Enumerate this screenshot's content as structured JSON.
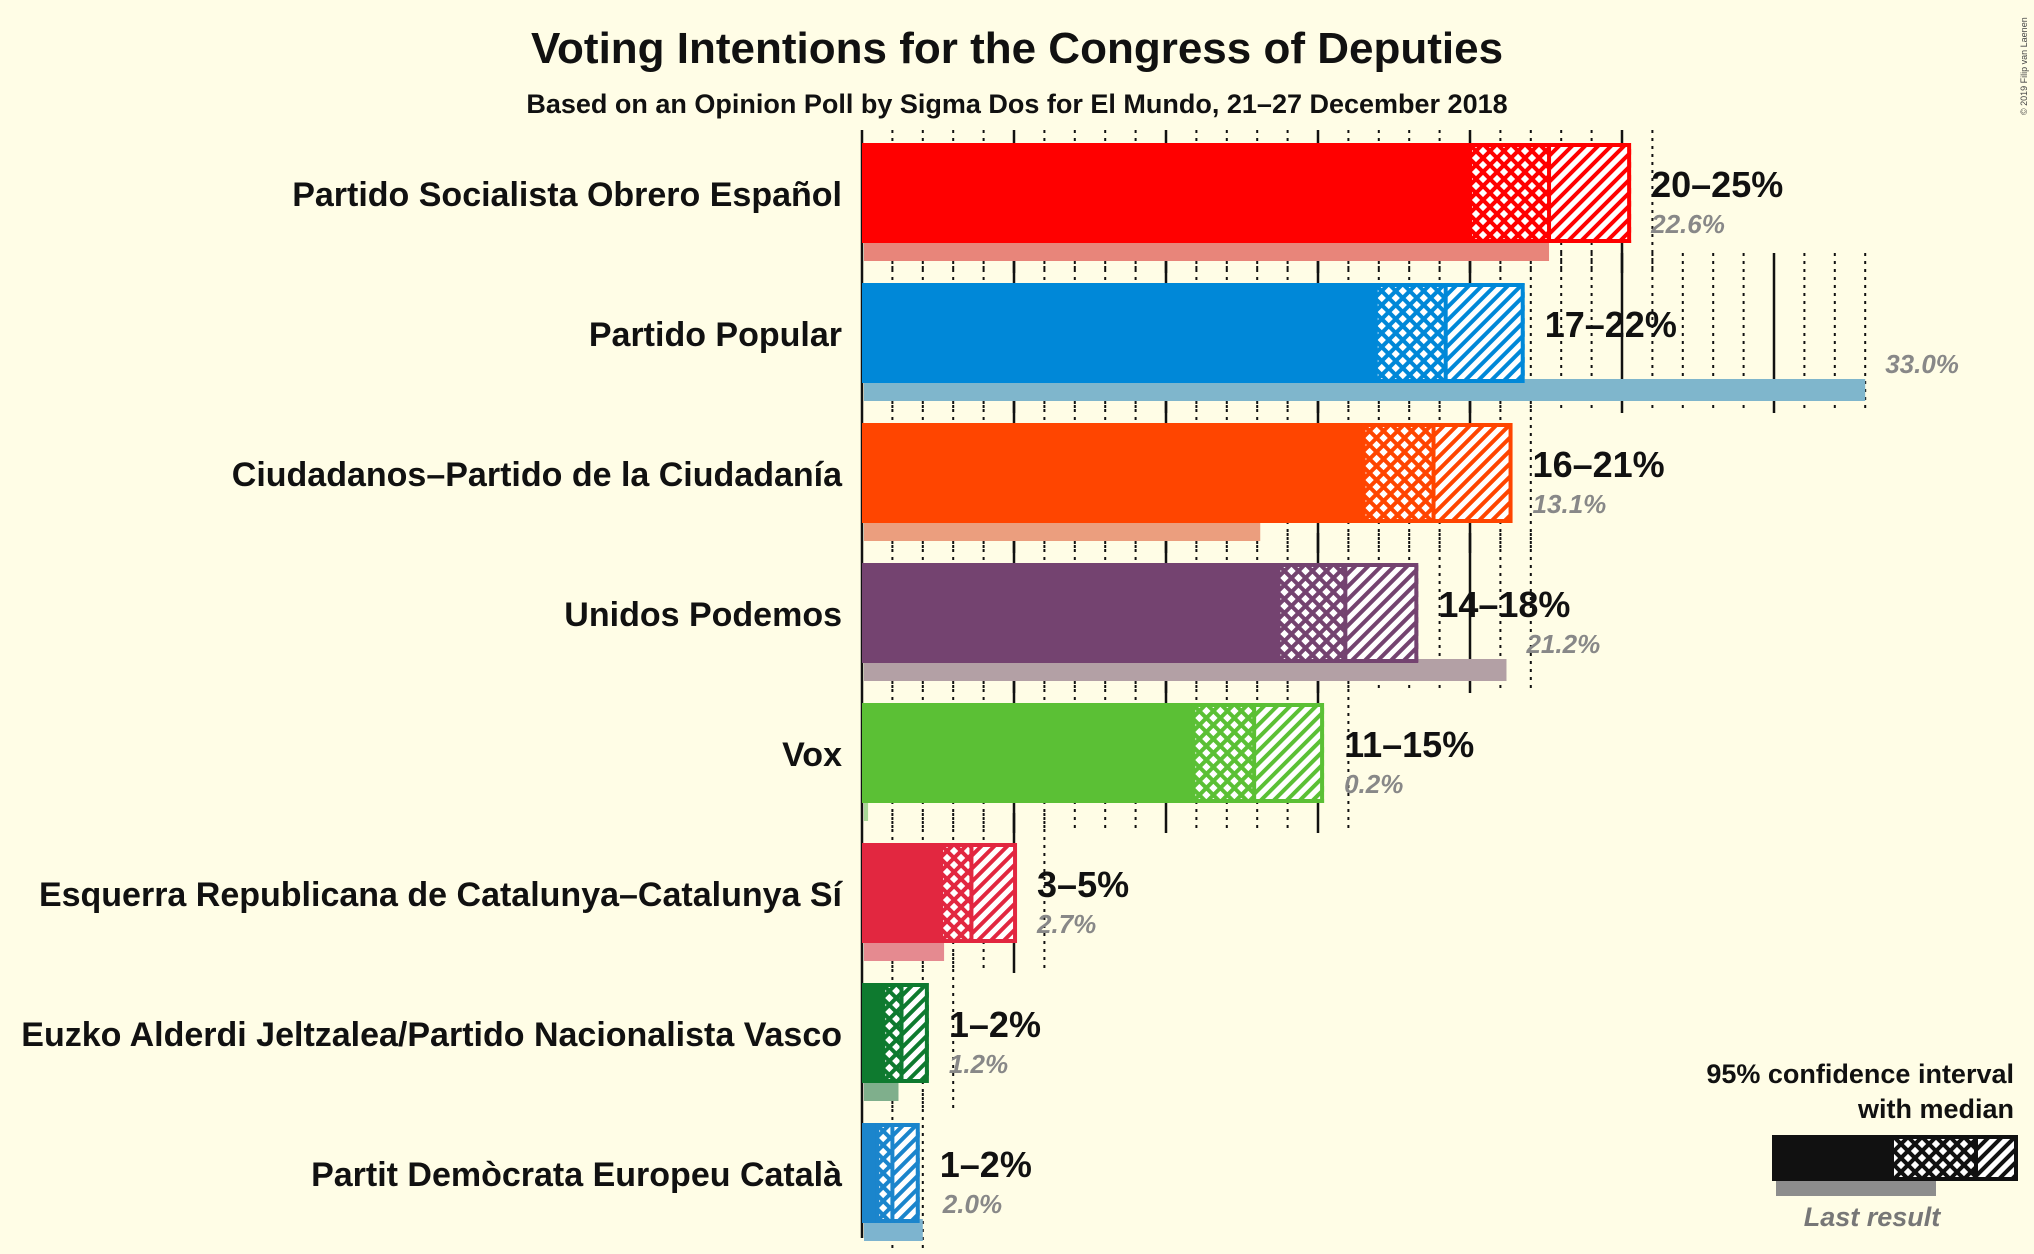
{
  "chart_data": {
    "type": "bar",
    "title": "Voting Intentions for the Congress of Deputies",
    "subtitle": "Based on an Opinion Poll by Sigma Dos for El Mundo, 21–27 December 2018",
    "copyright": "© 2019 Filip van Laenen",
    "unit": "percent",
    "parties": [
      {
        "name": "Partido Socialista Obrero Español",
        "color": "#ff0000",
        "last_color": "#e8857a",
        "low": 20.0,
        "median": 22.6,
        "high": 25.3,
        "range_label": "20–25%",
        "last_result": 22.6,
        "last_label": "22.6%"
      },
      {
        "name": "Partido Popular",
        "color": "#0088d8",
        "last_color": "#7fb6cc",
        "low": 16.9,
        "median": 19.2,
        "high": 21.8,
        "range_label": "17–22%",
        "last_result": 33.0,
        "last_label": "33.0%"
      },
      {
        "name": "Ciudadanos–Partido de la Ciudadanía",
        "color": "#ff4500",
        "last_color": "#eb9e7e",
        "low": 16.5,
        "median": 18.8,
        "high": 21.4,
        "range_label": "16–21%",
        "last_result": 13.1,
        "last_label": "13.1%"
      },
      {
        "name": "Unidos Podemos",
        "color": "#744370",
        "last_color": "#b3a0a5",
        "low": 13.7,
        "median": 15.9,
        "high": 18.3,
        "range_label": "14–18%",
        "last_result": 21.2,
        "last_label": "21.2%"
      },
      {
        "name": "Vox",
        "color": "#5bc035",
        "last_color": "#a8d897",
        "low": 10.9,
        "median": 12.9,
        "high": 15.2,
        "range_label": "11–15%",
        "last_result": 0.2,
        "last_label": "0.2%"
      },
      {
        "name": "Esquerra Republicana de Catalunya–Catalunya Sí",
        "color": "#e22740",
        "last_color": "#e58a90",
        "low": 2.6,
        "median": 3.6,
        "high": 5.1,
        "range_label": "3–5%",
        "last_result": 2.7,
        "last_label": "2.7%"
      },
      {
        "name": "Euzko Alderdi Jeltzalea/Partido Nacionalista Vasco",
        "color": "#0e7a2f",
        "last_color": "#7faf8c",
        "low": 0.7,
        "median": 1.3,
        "high": 2.2,
        "range_label": "1–2%",
        "last_result": 1.2,
        "last_label": "1.2%"
      },
      {
        "name": "Partit Demòcrata Europeu Català",
        "color": "#1b85cc",
        "last_color": "#7db4cf",
        "low": 0.5,
        "median": 1.0,
        "high": 1.9,
        "range_label": "1–2%",
        "last_result": 2.0,
        "last_label": "2.0%"
      }
    ],
    "legend": {
      "line1": "95% confidence interval",
      "line2": "with median",
      "last": "Last result",
      "placement": "bottom-right"
    }
  }
}
